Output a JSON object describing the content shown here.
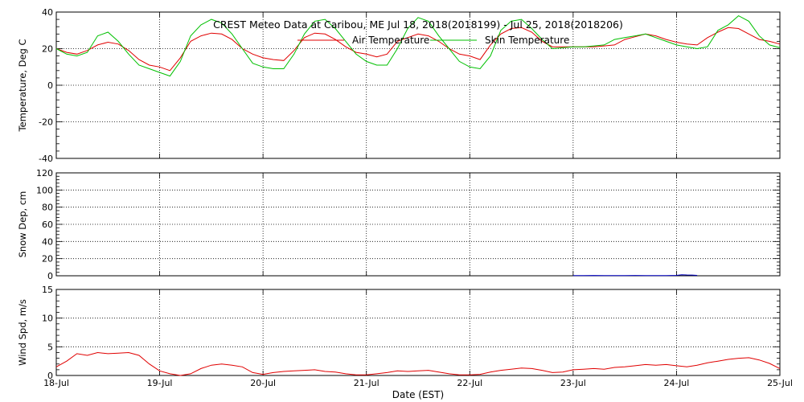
{
  "chart_data": [
    {
      "type": "line",
      "title": "CREST Meteo Data at Caribou, ME   Jul 18, 2018(2018199) - Jul 25, 2018(2018206)",
      "ylabel": "Temperature, Deg C",
      "ylim": [
        -40,
        40
      ],
      "yticks": [
        -40,
        -20,
        0,
        20,
        40
      ],
      "grid": true,
      "legend_placement": "top-center",
      "series": [
        {
          "name": "Air Temperature",
          "color": "#e00000",
          "x": [
            0,
            0.1,
            0.2,
            0.3,
            0.4,
            0.5,
            0.6,
            0.7,
            0.8,
            0.9,
            1,
            1.1,
            1.2,
            1.3,
            1.4,
            1.5,
            1.6,
            1.7,
            1.8,
            1.9,
            2,
            2.1,
            2.2,
            2.3,
            2.4,
            2.5,
            2.6,
            2.7,
            2.8,
            2.9,
            3,
            3.1,
            3.2,
            3.3,
            3.4,
            3.5,
            3.6,
            3.7,
            3.8,
            3.9,
            4,
            4.1,
            4.2,
            4.3,
            4.4,
            4.5,
            4.6,
            4.7,
            4.8,
            4.9,
            5,
            5.1,
            5.2,
            5.3,
            5.4,
            5.5,
            5.6,
            5.7,
            5.8,
            5.9,
            6,
            6.1,
            6.2,
            6.3,
            6.4,
            6.5,
            6.6,
            6.7,
            6.8,
            6.9,
            7
          ],
          "y": [
            20,
            18,
            17,
            19,
            22,
            23.5,
            22.5,
            19,
            14,
            11,
            10,
            8,
            15,
            24,
            27,
            28.5,
            28,
            25,
            20,
            17,
            15,
            14,
            13.5,
            19,
            26,
            28.5,
            28,
            25,
            21,
            18,
            17,
            15.5,
            17,
            24,
            26,
            28,
            27,
            24,
            20,
            17,
            16,
            14,
            22,
            28,
            31,
            31.5,
            29,
            24,
            21,
            21,
            21,
            21,
            21,
            21.5,
            22,
            25,
            26.5,
            28,
            27,
            25,
            23.5,
            22.5,
            22,
            26,
            29,
            31.5,
            31,
            28,
            25,
            24,
            22.5
          ]
        },
        {
          "name": "Skin Temperature",
          "color": "#00c000",
          "x": [
            0,
            0.1,
            0.2,
            0.3,
            0.4,
            0.5,
            0.6,
            0.7,
            0.8,
            0.9,
            1,
            1.1,
            1.2,
            1.3,
            1.4,
            1.5,
            1.6,
            1.7,
            1.8,
            1.9,
            2,
            2.1,
            2.2,
            2.3,
            2.4,
            2.5,
            2.6,
            2.7,
            2.8,
            2.9,
            3,
            3.1,
            3.2,
            3.3,
            3.4,
            3.5,
            3.6,
            3.7,
            3.8,
            3.9,
            4,
            4.1,
            4.2,
            4.3,
            4.4,
            4.5,
            4.6,
            4.7,
            4.8,
            4.9,
            5,
            5.1,
            5.2,
            5.3,
            5.4,
            5.5,
            5.6,
            5.7,
            5.8,
            5.9,
            6,
            6.1,
            6.2,
            6.3,
            6.4,
            6.5,
            6.6,
            6.7,
            6.8,
            6.9,
            7
          ],
          "y": [
            20,
            17,
            16,
            18,
            27,
            29,
            24,
            17,
            11,
            9,
            7,
            5,
            13,
            27,
            33,
            36,
            34,
            28,
            20,
            12,
            10,
            9,
            9,
            17,
            28,
            35,
            36,
            31,
            24,
            17,
            13,
            11,
            11,
            20,
            31,
            37,
            35,
            27,
            20,
            13,
            10,
            9,
            16,
            30,
            35,
            36,
            31,
            25,
            20,
            20.5,
            21,
            21,
            21.5,
            22,
            25,
            26,
            27,
            28,
            26,
            24,
            22,
            21,
            20,
            21,
            30,
            33,
            38,
            35,
            27,
            22,
            20.5
          ]
        }
      ]
    },
    {
      "type": "line",
      "ylabel": "Snow Dep, cm",
      "ylim": [
        0,
        120
      ],
      "yticks": [
        0,
        20,
        40,
        60,
        80,
        100,
        120
      ],
      "grid": true,
      "series": [
        {
          "color": "#0000c0",
          "x": [
            5.0,
            5.1,
            5.2,
            5.3,
            5.4,
            5.5,
            5.6,
            5.7,
            5.8,
            5.9,
            6.0,
            6.05,
            6.1,
            6.15,
            6.2
          ],
          "y": [
            0.3,
            0.2,
            0.4,
            0.3,
            0.2,
            0.3,
            0.4,
            0.3,
            0.2,
            0.3,
            0.5,
            1.2,
            0.9,
            0.8,
            0.5
          ]
        }
      ]
    },
    {
      "type": "line",
      "ylabel": "Wind Spd, m/s",
      "xlabel": "Date (EST)",
      "ylim": [
        0,
        15
      ],
      "yticks": [
        0,
        5,
        10,
        15
      ],
      "grid": true,
      "xticks": [
        "18-Jul",
        "19-Jul",
        "20-Jul",
        "21-Jul",
        "22-Jul",
        "23-Jul",
        "24-Jul",
        "25-Jul"
      ],
      "series": [
        {
          "color": "#e00000",
          "x": [
            0,
            0.1,
            0.2,
            0.3,
            0.4,
            0.5,
            0.6,
            0.7,
            0.8,
            0.9,
            1,
            1.1,
            1.2,
            1.3,
            1.4,
            1.5,
            1.6,
            1.7,
            1.8,
            1.9,
            2,
            2.1,
            2.2,
            2.3,
            2.4,
            2.5,
            2.6,
            2.7,
            2.8,
            2.9,
            3,
            3.1,
            3.2,
            3.3,
            3.4,
            3.5,
            3.6,
            3.7,
            3.8,
            3.9,
            4,
            4.1,
            4.2,
            4.3,
            4.4,
            4.5,
            4.6,
            4.7,
            4.8,
            4.9,
            5,
            5.1,
            5.2,
            5.3,
            5.4,
            5.5,
            5.6,
            5.7,
            5.8,
            5.9,
            6,
            6.1,
            6.2,
            6.3,
            6.4,
            6.5,
            6.6,
            6.7,
            6.8,
            6.9,
            7
          ],
          "y": [
            1.5,
            2.5,
            3.8,
            3.5,
            4,
            3.8,
            3.9,
            4,
            3.5,
            2,
            0.8,
            0.3,
            0,
            0.3,
            1.2,
            1.8,
            2,
            1.8,
            1.5,
            0.5,
            0.2,
            0.5,
            0.7,
            0.8,
            0.9,
            1,
            0.7,
            0.6,
            0.3,
            0.1,
            0.1,
            0.3,
            0.5,
            0.8,
            0.7,
            0.8,
            0.9,
            0.6,
            0.3,
            0.1,
            0.1,
            0.2,
            0.6,
            0.9,
            1.1,
            1.3,
            1.2,
            0.9,
            0.5,
            0.6,
            1,
            1.1,
            1.2,
            1.1,
            1.4,
            1.5,
            1.7,
            1.9,
            1.8,
            1.9,
            1.7,
            1.5,
            1.8,
            2.2,
            2.5,
            2.8,
            3,
            3.1,
            2.7,
            2.1,
            1.2
          ]
        }
      ]
    }
  ]
}
